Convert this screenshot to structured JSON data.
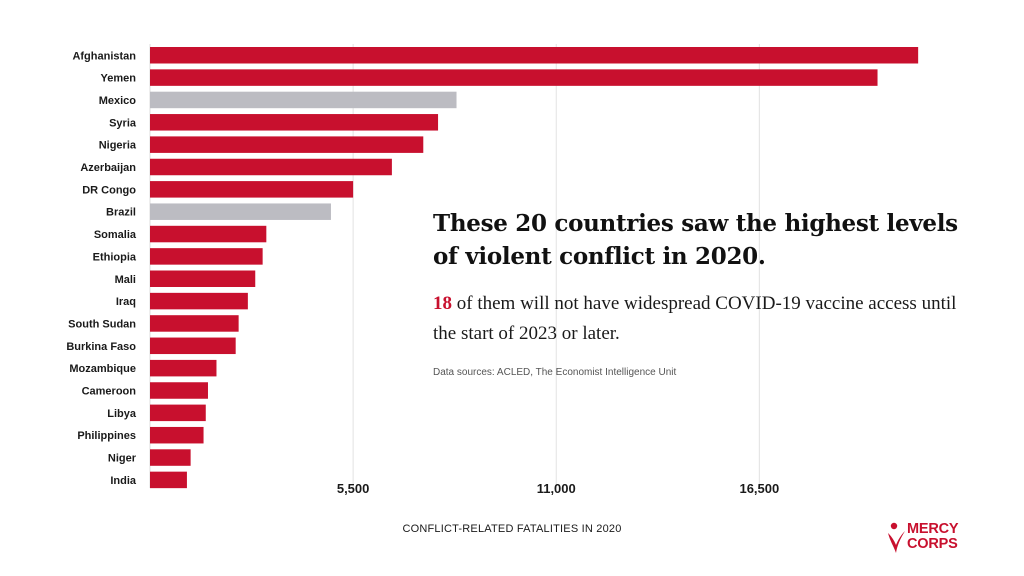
{
  "chart_data": {
    "type": "bar",
    "orientation": "horizontal",
    "categories": [
      "Afghanistan",
      "Yemen",
      "Mexico",
      "Syria",
      "Nigeria",
      "Azerbaijan",
      "DR Congo",
      "Brazil",
      "Somalia",
      "Ethiopia",
      "Mali",
      "Iraq",
      "South Sudan",
      "Burkina Faso",
      "Mozambique",
      "Cameroon",
      "Libya",
      "Philippines",
      "Niger",
      "India"
    ],
    "values": [
      20800,
      19700,
      8300,
      7800,
      7400,
      6550,
      5500,
      4900,
      3150,
      3050,
      2850,
      2650,
      2400,
      2320,
      1800,
      1570,
      1510,
      1450,
      1100,
      1000
    ],
    "colors": [
      "#c8102e",
      "#c8102e",
      "#bcbcc2",
      "#c8102e",
      "#c8102e",
      "#c8102e",
      "#c8102e",
      "#bcbcc2",
      "#c8102e",
      "#c8102e",
      "#c8102e",
      "#c8102e",
      "#c8102e",
      "#c8102e",
      "#c8102e",
      "#c8102e",
      "#c8102e",
      "#c8102e",
      "#c8102e",
      "#c8102e"
    ],
    "xticks": [
      5500,
      11000,
      16500
    ],
    "xtick_labels": [
      "5,500",
      "11,000",
      "16,500"
    ],
    "xlim": [
      0,
      20850
    ],
    "xlabel": "CONFLICT-RELATED FATALITIES IN 2020",
    "grid": true
  },
  "headline": "These 20 countries saw the highest levels of violent conflict in 2020.",
  "subtext": {
    "highlight": "18",
    "rest": " of them will not have widespread COVID-19 vaccine access until the start of 2023 or later."
  },
  "source": "Data sources: ACLED, The Economist Intelligence Unit",
  "brand": {
    "line1": "MERCY",
    "line2": "CORPS",
    "icon": "mercy-corps-logo-icon",
    "color": "#c8102e"
  }
}
